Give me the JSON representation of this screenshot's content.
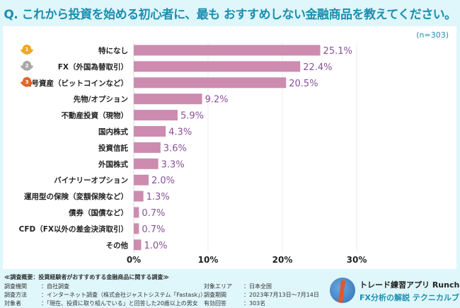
{
  "title": "Q. これから投資を始める初心者に、最も おすすめしない金融商品を教えてください。",
  "sample_size": "(n=303)",
  "chart_data": {
    "type": "bar",
    "orientation": "horizontal",
    "title": "Q. これから投資を始める初心者に、最もおすすめしない金融商品を教えてください。",
    "categories": [
      "特になし",
      "FX（外国為替取引）",
      "暗号資産（ビットコインなど）",
      "先物/オプション",
      "不動産投資（現物）",
      "国内株式",
      "投資信託",
      "外国株式",
      "バイナリーオプション",
      "運用型の保険（変額保険など）",
      "債券（国債など）",
      "CFD（FX以外の差金決済取引）",
      "その他"
    ],
    "values": [
      25.1,
      22.4,
      20.5,
      9.2,
      5.9,
      4.3,
      3.6,
      3.3,
      2.0,
      1.3,
      0.7,
      0.7,
      1.0
    ],
    "value_labels": [
      "25.1%",
      "22.4%",
      "20.5%",
      "9.2%",
      "5.9%",
      "4.3%",
      "3.6%",
      "3.3%",
      "2.0%",
      "1.3%",
      "0.7%",
      "0.7%",
      "1.0%"
    ],
    "xlim": [
      0,
      30
    ],
    "xticks": [
      "0%",
      "10%",
      "20%",
      "30%"
    ],
    "xtick_values": [
      0,
      10,
      20,
      30
    ],
    "rank_badges": [
      "1",
      "2",
      "3"
    ],
    "grid": true,
    "bar_color": "#cd8bb0",
    "label_color": "#8a4f9a"
  },
  "footer": {
    "heading": "≪調査概要：投資経験者がおすすめする金融商品に関する調査≫",
    "rows": [
      {
        "k": "調査機関",
        "v": "：自社調査",
        "k2": "対象エリア",
        "v2": "：日本全国"
      },
      {
        "k": "調査方法",
        "v": "：インターネット調査（株式会社ジャストシステム「Fastask」）",
        "k2": "調査期間",
        "v2": "：2023年7月13日〜7月14日"
      },
      {
        "k": "対象者",
        "v": "：「現在、投資に取り組んでいる」と回答した20歳以上の男女",
        "k2": "有効回答",
        "v2": "：303名"
      }
    ]
  },
  "brand": {
    "line1": "トレード練習アプリ Runcha",
    "line2": "FX分析の解説 テクニカルブック"
  }
}
